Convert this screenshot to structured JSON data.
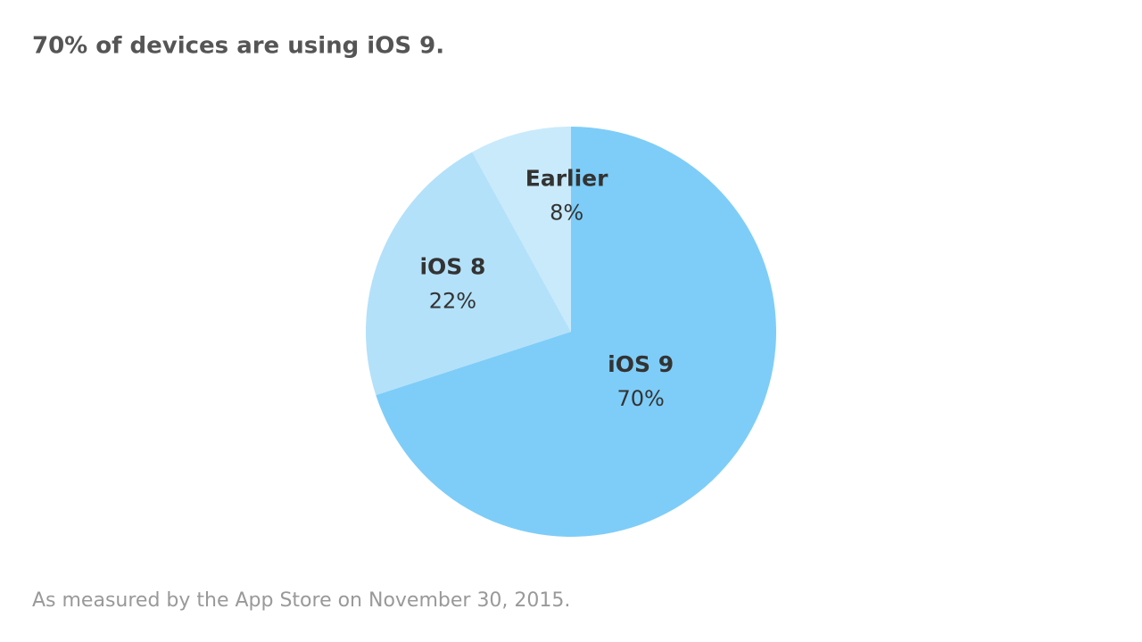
{
  "chart_data": {
    "type": "pie",
    "title": "70% of devices are using iOS 9.",
    "footnote": "As measured by the App Store on November 30, 2015.",
    "categories": [
      "iOS 9",
      "iOS 8",
      "Earlier"
    ],
    "values": [
      70,
      22,
      8
    ],
    "value_labels": [
      "70%",
      "22%",
      "8%"
    ],
    "colors": [
      "#7ecdf8",
      "#b3e1f9",
      "#c9eafb"
    ]
  }
}
